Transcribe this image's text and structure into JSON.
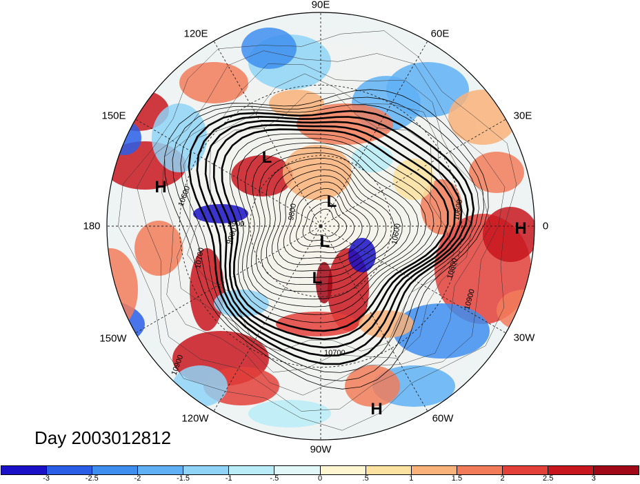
{
  "title": "Day 2003012812",
  "longitude_labels": [
    "90E",
    "60E",
    "30E",
    "0",
    "30W",
    "60W",
    "90W",
    "120W",
    "150W",
    "180",
    "150E",
    "120E"
  ],
  "pressure_markers": [
    "L",
    "L",
    "L",
    "L",
    "H",
    "H",
    "H"
  ],
  "contour_labels": [
    "9900",
    "9900",
    "10600",
    "9800",
    "10600",
    "10600",
    "10700",
    "10800",
    "10900",
    "10700",
    "10900"
  ],
  "colorbar": {
    "labels": [
      "-3",
      "-2.5",
      "-2",
      "-1.5",
      "-1",
      "-.5",
      "0",
      ".5",
      "1",
      "1.5",
      "2",
      "2.5",
      "3"
    ],
    "colors": [
      "#1a10c8",
      "#2a5ee6",
      "#3e8ef0",
      "#5fb0f5",
      "#8fd3f7",
      "#b9ecf7",
      "#e2f7f7",
      "#fdf6d0",
      "#fce2a0",
      "#f9b27a",
      "#f27c5a",
      "#e3403a",
      "#c8161f",
      "#a00818"
    ]
  }
}
